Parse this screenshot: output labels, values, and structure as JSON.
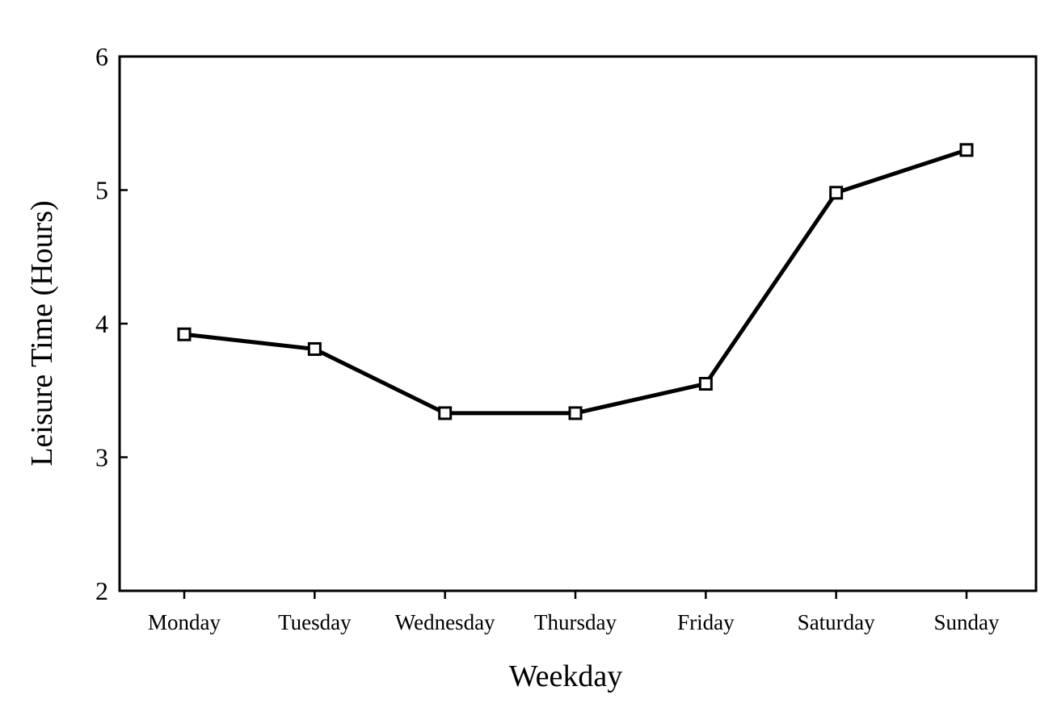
{
  "chart_data": {
    "type": "line",
    "title": "",
    "xlabel": "Weekday",
    "ylabel": "Leisure Time (Hours)",
    "categories": [
      "Monday",
      "Tuesday",
      "Wednesday",
      "Thursday",
      "Friday",
      "Saturday",
      "Sunday"
    ],
    "series": [
      {
        "values": [
          3.92,
          3.81,
          3.33,
          3.33,
          3.55,
          4.98,
          5.3
        ]
      }
    ],
    "ylim": [
      2,
      6
    ],
    "yticks": [
      "2",
      "3",
      "4",
      "5",
      "6"
    ],
    "grid": false,
    "legend": "none",
    "marker": "open-square",
    "colors": {
      "line": "#000000",
      "marker_fill": "#ffffff",
      "axis": "#000000"
    }
  }
}
